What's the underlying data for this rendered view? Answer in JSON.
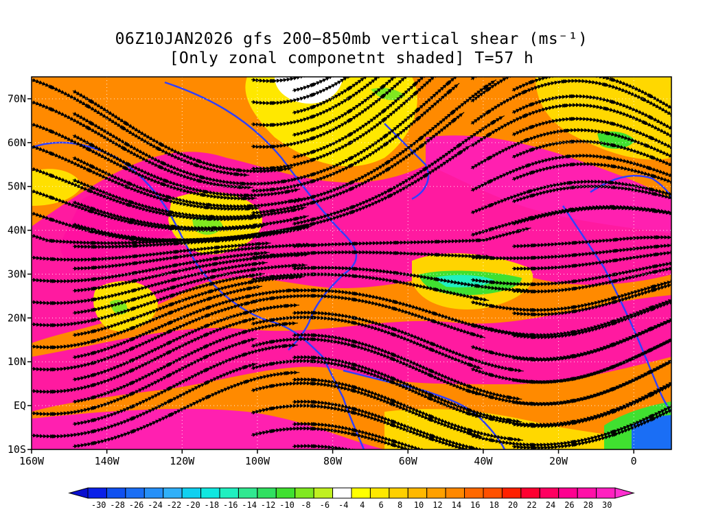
{
  "title": {
    "line1": "06Z10JAN2026 gfs 200−850mb vertical shear (ms⁻¹)",
    "line2": "[Only zonal componetnt shaded] T=57 h"
  },
  "axes": {
    "lon_range": [
      -160,
      10
    ],
    "lat_range": [
      -10,
      75
    ],
    "x_ticks": [
      {
        "value": -160,
        "label": "160W"
      },
      {
        "value": -140,
        "label": "140W"
      },
      {
        "value": -120,
        "label": "120W"
      },
      {
        "value": -100,
        "label": "100W"
      },
      {
        "value": -80,
        "label": "80W"
      },
      {
        "value": -60,
        "label": "60W"
      },
      {
        "value": -40,
        "label": "40W"
      },
      {
        "value": -20,
        "label": "20W"
      },
      {
        "value": 0,
        "label": "0"
      }
    ],
    "y_ticks": [
      {
        "value": 70,
        "label": "70N"
      },
      {
        "value": 60,
        "label": "60N"
      },
      {
        "value": 50,
        "label": "50N"
      },
      {
        "value": 40,
        "label": "40N"
      },
      {
        "value": 30,
        "label": "30N"
      },
      {
        "value": 20,
        "label": "20N"
      },
      {
        "value": 10,
        "label": "10N"
      },
      {
        "value": 0,
        "label": "EQ"
      },
      {
        "value": -10,
        "label": "10S"
      }
    ]
  },
  "colorbar": {
    "colors": [
      "#0a20e8",
      "#1050f0",
      "#1a6ef5",
      "#2690f8",
      "#30b0f8",
      "#10d0f0",
      "#10e8e0",
      "#20f0c0",
      "#30e890",
      "#30e060",
      "#40e030",
      "#80e820",
      "#c0f020",
      "#ffffff",
      "#ffff00",
      "#ffe800",
      "#ffd000",
      "#ffb800",
      "#ffa000",
      "#ff8800",
      "#ff6800",
      "#ff5000",
      "#ff2000",
      "#ff0030",
      "#ff0060",
      "#ff0090",
      "#ff10a8",
      "#ff20c0"
    ],
    "labels": [
      "-30",
      "-28",
      "-26",
      "-24",
      "-22",
      "-20",
      "-18",
      "-16",
      "-14",
      "-12",
      "-10",
      "-8",
      "-6",
      "-4",
      "4",
      "6",
      "8",
      "10",
      "12",
      "14",
      "16",
      "18",
      "20",
      "22",
      "24",
      "26",
      "28",
      "30"
    ]
  }
}
